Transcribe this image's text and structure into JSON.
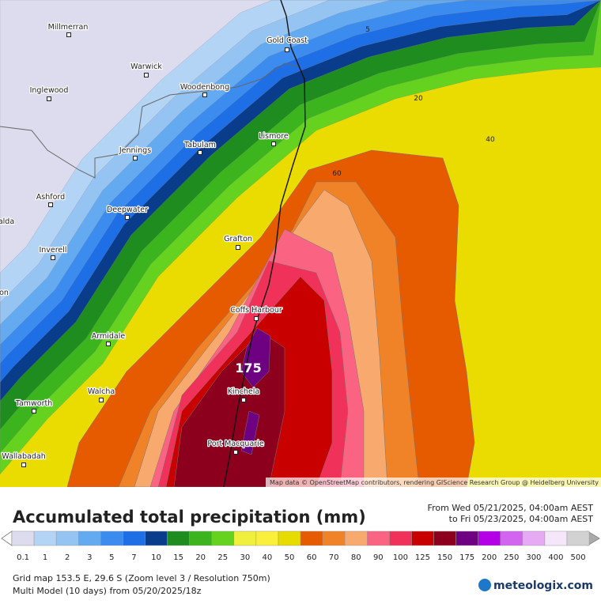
{
  "map": {
    "towns": [
      "Millmerran",
      "Warwick",
      "Inglewood",
      "Woodenbong",
      "Gold Coast",
      "Lismore",
      "Jennings",
      "Tabulam",
      "Ashford",
      "Deepwater",
      "alda",
      "Inverell",
      "Grafton",
      "on",
      "Coffs Harbour",
      "Armidale",
      "Walcha",
      "Tamworth",
      "Kinchela",
      "Port Macquarie",
      "Wallabadah"
    ],
    "contour_labels": [
      "5",
      "20",
      "40",
      "60"
    ],
    "max_label": "175",
    "attribution": "Map data © OpenStreetMap contributors, rendering GIScience Research Group @ Heidelberg University"
  },
  "header": {
    "title": "Accumulated total precipitation (mm)",
    "from": "From Wed 05/21/2025, 04:00am AEST",
    "to": "to Fri 05/23/2025, 04:00am AEST"
  },
  "legend": {
    "ticks": [
      0.1,
      1,
      2,
      3,
      5,
      7,
      10,
      15,
      20,
      25,
      30,
      40,
      50,
      60,
      70,
      80,
      90,
      100,
      125,
      150,
      175,
      200,
      250,
      300,
      400,
      500
    ],
    "colors": [
      "#dcdcee",
      "#b4d4f6",
      "#96c4f2",
      "#64aaf0",
      "#3c8cf0",
      "#1e6ee6",
      "#0a3c8c",
      "#1e8c1e",
      "#3cb41e",
      "#64d21e",
      "#f0f03c",
      "#faf03c",
      "#e6dc00",
      "#e65a00",
      "#f08228",
      "#f8aa6e",
      "#fa6482",
      "#f0325a",
      "#c80000",
      "#8c001e",
      "#6e0082",
      "#b400e6",
      "#d264f0",
      "#e6aaf5",
      "#f5e6fa",
      "#d2d2d2"
    ]
  },
  "footer": {
    "grid": "Grid map 153.5 E, 29.6 S (Zoom level 3 / Resolution 750m)",
    "model": "Multi Model (10 days) from 05/20/2025/18z",
    "brand": "meteologix.com"
  }
}
